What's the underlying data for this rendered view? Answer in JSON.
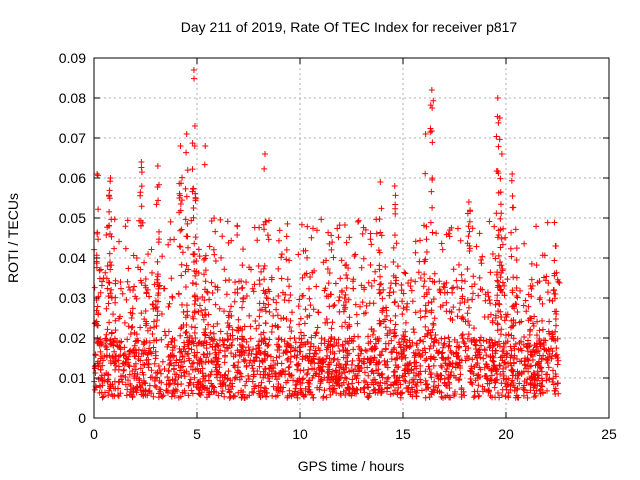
{
  "chart_data": {
    "type": "scatter",
    "title": "Day 211 of 2019, Rate Of TEC Index for receiver p817",
    "xlabel": "GPS time / hours",
    "ylabel": "ROTI / TECUs",
    "xlim": [
      0,
      25
    ],
    "ylim": [
      0,
      0.09
    ],
    "xticks": [
      "0",
      "5",
      "10",
      "15",
      "20",
      "25"
    ],
    "yticks": [
      "0",
      "0.01",
      "0.02",
      "0.03",
      "0.04",
      "0.05",
      "0.06",
      "0.07",
      "0.08",
      "0.09"
    ],
    "grid": true,
    "marker": "+",
    "color": "#ff0000",
    "data_time_range_hours": [
      0,
      22.6
    ],
    "baseline_band": [
      0.005,
      0.02
    ],
    "notable_peaks": [
      {
        "x": 0.15,
        "y": 0.061
      },
      {
        "x": 0.8,
        "y": 0.06
      },
      {
        "x": 2.3,
        "y": 0.064
      },
      {
        "x": 3.1,
        "y": 0.063
      },
      {
        "x": 4.2,
        "y": 0.068
      },
      {
        "x": 4.5,
        "y": 0.071
      },
      {
        "x": 4.85,
        "y": 0.087
      },
      {
        "x": 4.9,
        "y": 0.073
      },
      {
        "x": 5.4,
        "y": 0.068
      },
      {
        "x": 8.3,
        "y": 0.066
      },
      {
        "x": 13.9,
        "y": 0.059
      },
      {
        "x": 14.6,
        "y": 0.058
      },
      {
        "x": 16.1,
        "y": 0.071
      },
      {
        "x": 16.4,
        "y": 0.082
      },
      {
        "x": 18.2,
        "y": 0.054
      },
      {
        "x": 19.6,
        "y": 0.08
      },
      {
        "x": 19.7,
        "y": 0.075
      },
      {
        "x": 19.8,
        "y": 0.066
      },
      {
        "x": 20.3,
        "y": 0.061
      },
      {
        "x": 22.4,
        "y": 0.043
      }
    ]
  }
}
